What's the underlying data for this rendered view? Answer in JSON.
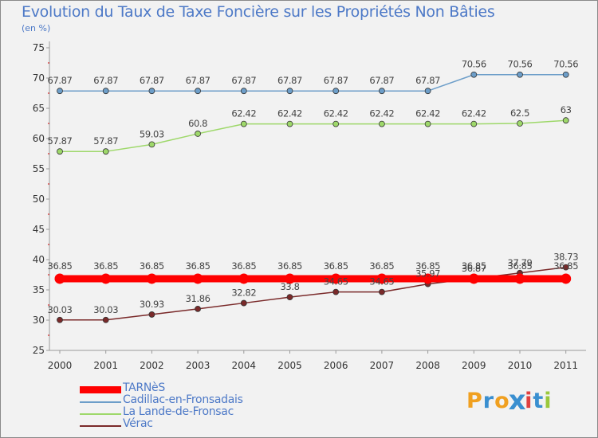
{
  "chart_data": {
    "type": "line",
    "title": "Evolution du Taux de Taxe Foncière sur les Propriétés Non Bâties",
    "unit_label": "(en %)",
    "xlabel": "",
    "ylabel": "(en %)",
    "x": [
      "2000",
      "2001",
      "2002",
      "2003",
      "2004",
      "2005",
      "2006",
      "2007",
      "2008",
      "2009",
      "2010",
      "2011"
    ],
    "ylim": [
      25,
      75
    ],
    "yticks": [
      25,
      30,
      35,
      40,
      45,
      50,
      55,
      60,
      65,
      70,
      75
    ],
    "grid": false,
    "legend_position": "bottom-left",
    "series": [
      {
        "name": "TARNèS",
        "color": "#ff0000",
        "values": [
          36.85,
          36.85,
          36.85,
          36.85,
          36.85,
          36.85,
          36.85,
          36.85,
          36.85,
          36.85,
          36.85,
          36.85
        ],
        "labels": [
          "36.85",
          "36.85",
          "36.85",
          "36.85",
          "36.85",
          "36.85",
          "36.85",
          "36.85",
          "36.85",
          "36.85",
          "36.85",
          "36.85"
        ]
      },
      {
        "name": "Cadillac-en-Fronsadais",
        "color": "#6d9ec9",
        "values": [
          67.87,
          67.87,
          67.87,
          67.87,
          67.87,
          67.87,
          67.87,
          67.87,
          67.87,
          70.56,
          70.56,
          70.56
        ],
        "labels": [
          "67.87",
          "67.87",
          "67.87",
          "67.87",
          "67.87",
          "67.87",
          "67.87",
          "67.87",
          "67.87",
          "70.56",
          "70.56",
          "70.56"
        ]
      },
      {
        "name": "La Lande-de-Fronsac",
        "color": "#9ed86a",
        "values": [
          57.87,
          57.87,
          59.03,
          60.8,
          62.42,
          62.42,
          62.42,
          62.42,
          62.42,
          62.42,
          62.5,
          63
        ],
        "labels": [
          "57.87",
          "57.87",
          "59.03",
          "60.8",
          "62.42",
          "62.42",
          "62.42",
          "62.42",
          "62.42",
          "62.42",
          "62.5",
          "63"
        ]
      },
      {
        "name": "Vérac",
        "color": "#7a2a2a",
        "values": [
          30.03,
          30.03,
          30.93,
          31.86,
          32.82,
          33.8,
          34.65,
          34.65,
          35.97,
          36.87,
          37.79,
          38.73
        ],
        "labels": [
          "30.03",
          "30.03",
          "30.93",
          "31.86",
          "32.82",
          "33.8",
          "34.65",
          "34.65",
          "35.97",
          "36.87",
          "37.79",
          "38.73"
        ]
      }
    ]
  },
  "brand": {
    "letters": [
      "P",
      "r",
      "o",
      "x",
      "i",
      "t",
      "i"
    ],
    "colors": [
      "#f0a020",
      "#3a8fd0",
      "#f0a020",
      "#3a8fd0",
      "#e04040",
      "#3a8fd0",
      "#9ac83c"
    ]
  }
}
